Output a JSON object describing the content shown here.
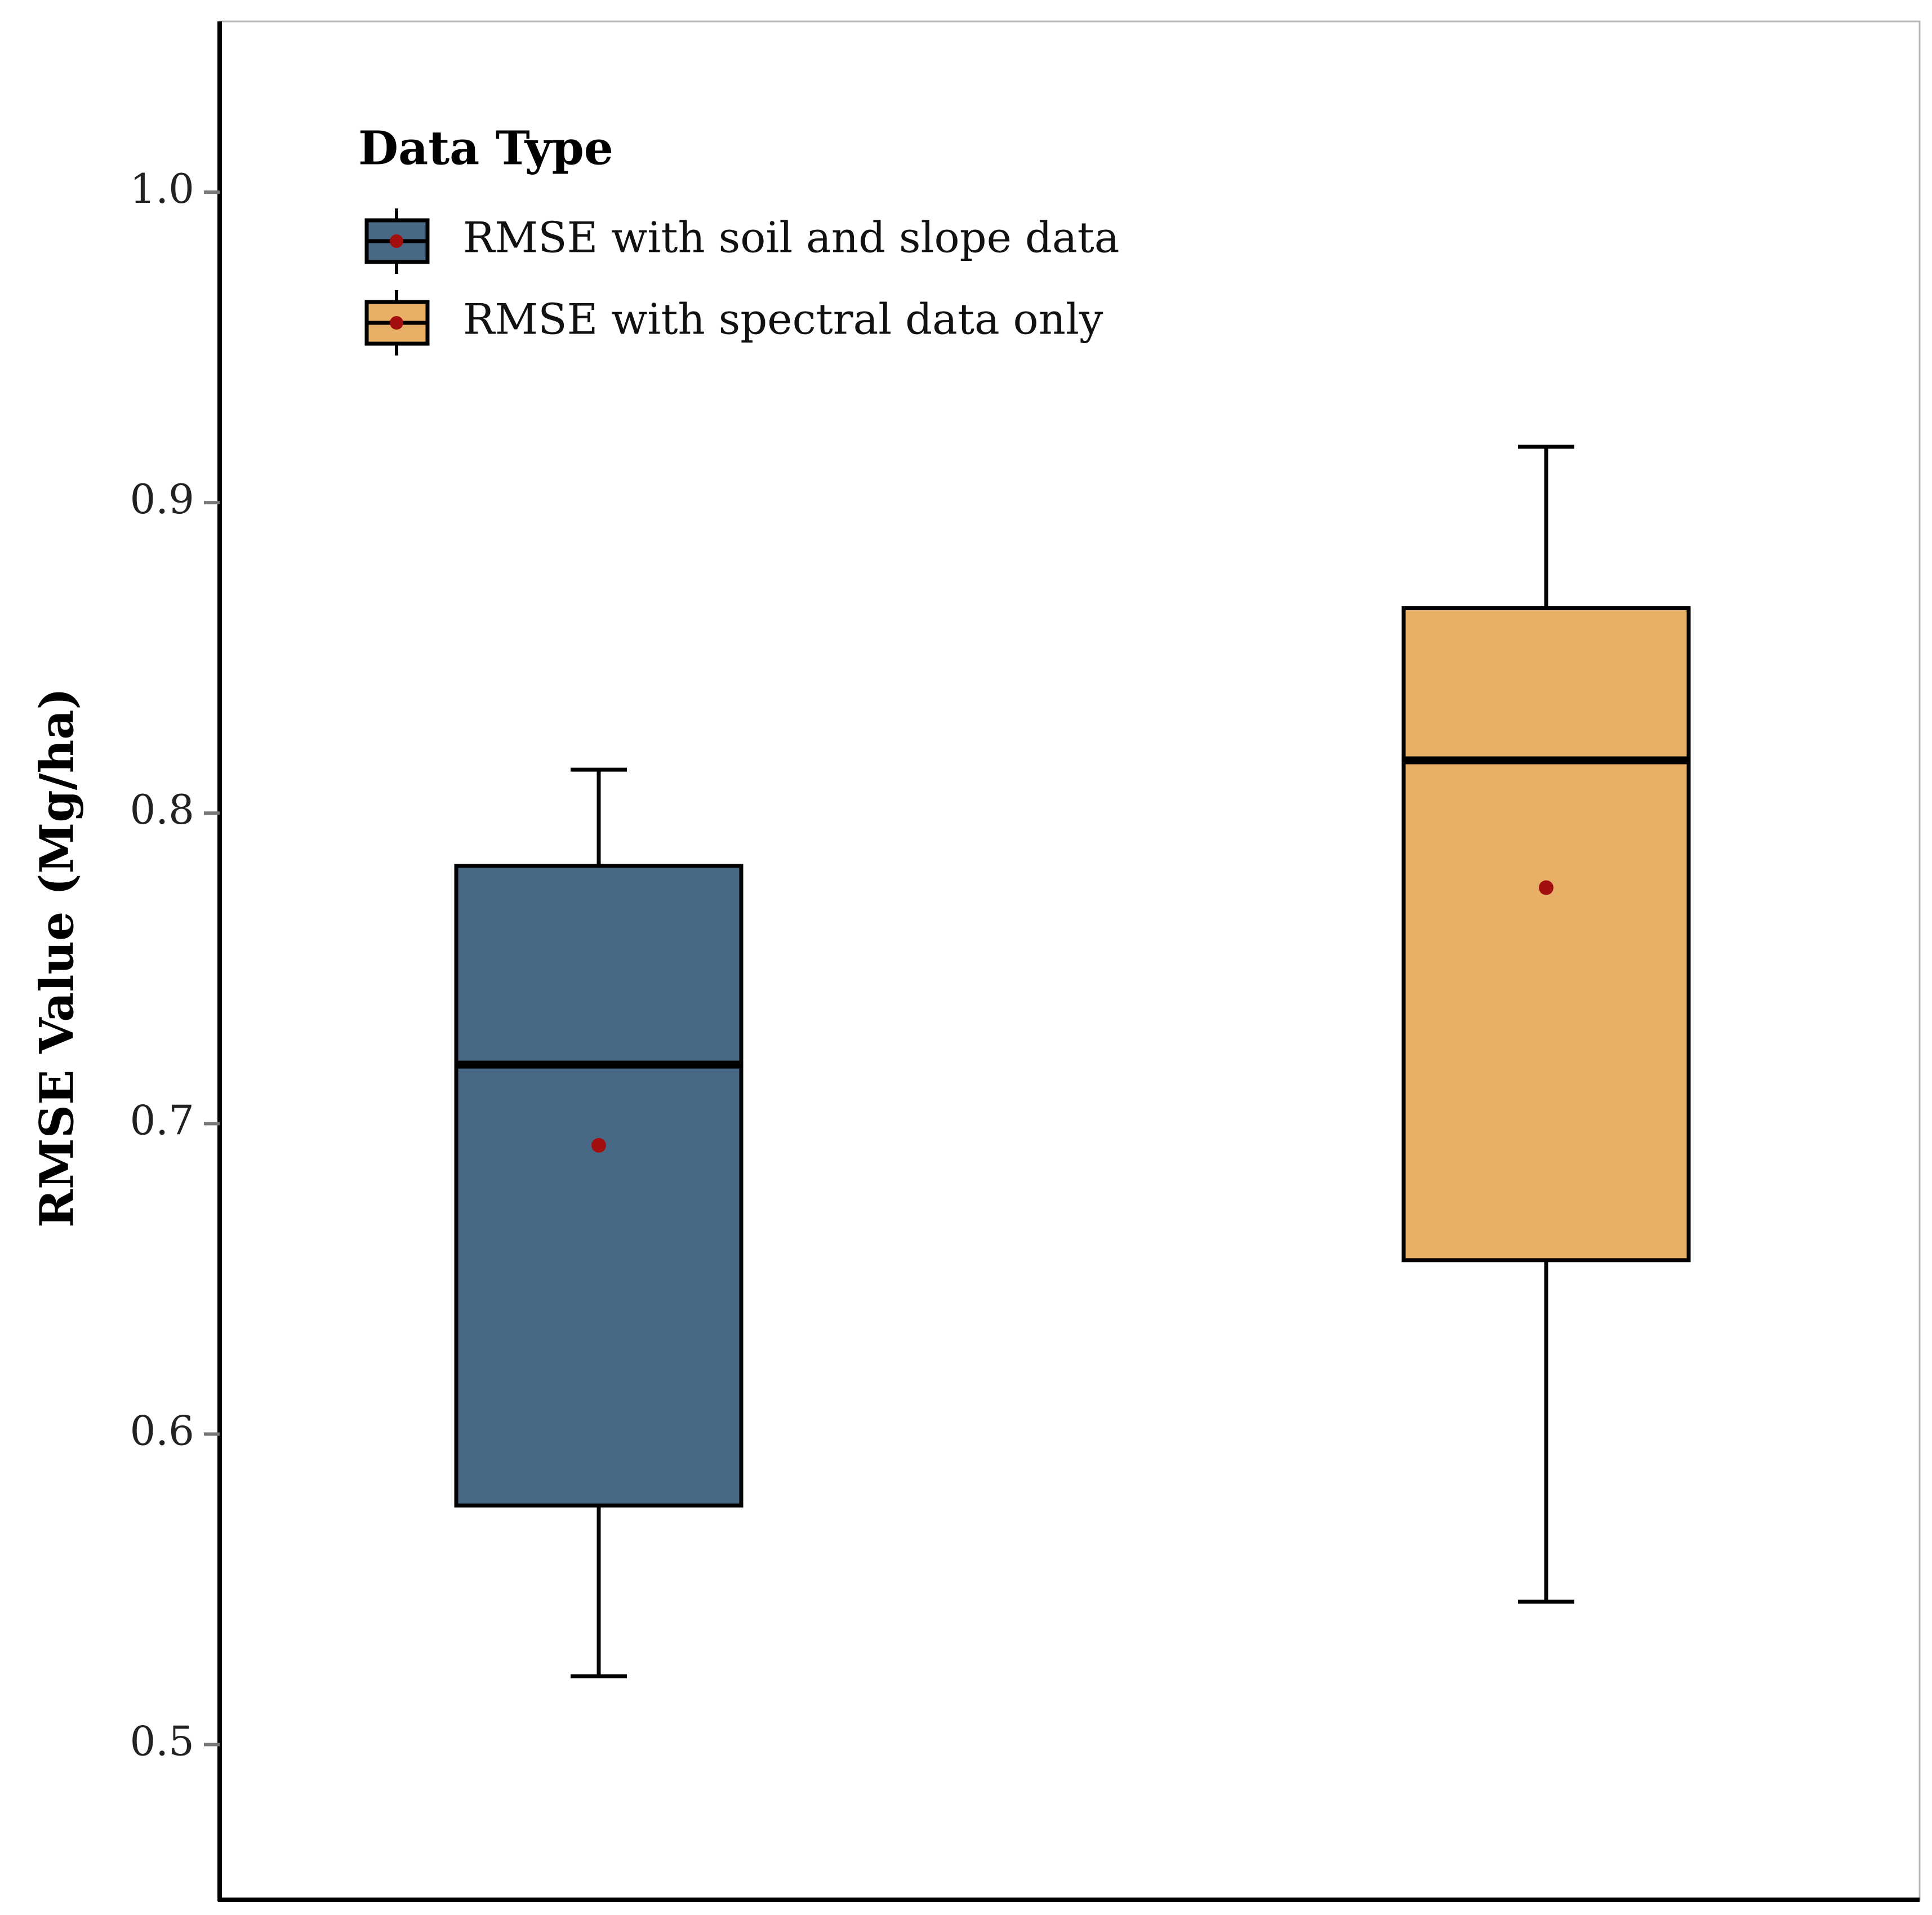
{
  "chart_data": {
    "type": "box",
    "title": "",
    "xlabel": "",
    "ylabel": "RMSE Value (Mg/ha)",
    "ylim": [
      0.45,
      1.055
    ],
    "yticks": [
      0.5,
      0.6,
      0.7,
      0.8,
      0.9,
      1.0
    ],
    "ytick_labels": [
      "0.5",
      "0.6",
      "0.7",
      "0.8",
      "0.9",
      "1.0"
    ],
    "grid": false,
    "legend": {
      "title": "Data Type",
      "placement": "top-left",
      "entries": [
        {
          "label": "RMSE with soil and slope data",
          "color": "#476985"
        },
        {
          "label": "RMSE with spectral data only",
          "color": "#e8b066"
        }
      ]
    },
    "series": [
      {
        "name": "RMSE with soil and slope data",
        "color": "#476985",
        "whisker_low": 0.522,
        "q1": 0.577,
        "median": 0.719,
        "q3": 0.783,
        "whisker_high": 0.814,
        "mean": 0.693
      },
      {
        "name": "RMSE with spectral data only",
        "color": "#e8b066",
        "whisker_low": 0.546,
        "q1": 0.656,
        "median": 0.817,
        "q3": 0.866,
        "whisker_high": 0.918,
        "mean": 0.776
      }
    ],
    "mean_marker_color": "#a30f0f"
  }
}
